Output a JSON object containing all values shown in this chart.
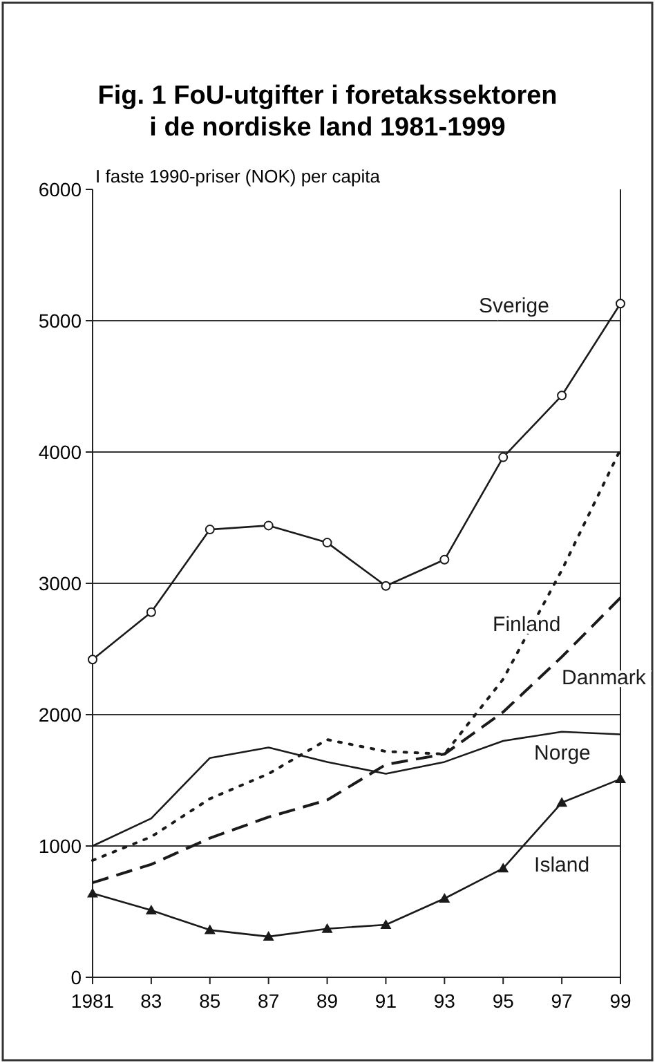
{
  "chart_data": {
    "type": "line",
    "title": "Fig. 1 FoU-utgifter i foretakssektoren i de nordiske land 1981-1999",
    "ylabel": "I faste 1990-priser (NOK) per capita",
    "x": [
      1981,
      1983,
      1985,
      1987,
      1989,
      1991,
      1993,
      1995,
      1997,
      1999
    ],
    "xlim": [
      1981,
      1999
    ],
    "xticks": [
      {
        "value": 1981,
        "label": "1981"
      },
      {
        "value": 1983,
        "label": "83"
      },
      {
        "value": 1985,
        "label": "85"
      },
      {
        "value": 1987,
        "label": "87"
      },
      {
        "value": 1989,
        "label": "89"
      },
      {
        "value": 1991,
        "label": "91"
      },
      {
        "value": 1993,
        "label": "93"
      },
      {
        "value": 1995,
        "label": "95"
      },
      {
        "value": 1997,
        "label": "97"
      },
      {
        "value": 1999,
        "label": "99"
      }
    ],
    "ylim": [
      0,
      6000
    ],
    "yticks": [
      0,
      1000,
      2000,
      3000,
      4000,
      5000,
      6000
    ],
    "grid": "y",
    "series": [
      {
        "name": "Sverige",
        "color": "#1a1a1a",
        "marker": "circle",
        "line_style": "solid",
        "values": [
          2420,
          2780,
          3410,
          3440,
          3310,
          2980,
          3180,
          3960,
          4430,
          5130
        ]
      },
      {
        "name": "Finland",
        "color": "#1a1a1a",
        "marker": "none",
        "line_style": "dotted",
        "values": [
          890,
          1070,
          1360,
          1550,
          1810,
          1720,
          1700,
          2270,
          3100,
          4020
        ]
      },
      {
        "name": "Danmark",
        "color": "#1a1a1a",
        "marker": "none",
        "line_style": "dashed",
        "values": [
          720,
          860,
          1060,
          1220,
          1350,
          1620,
          1700,
          2020,
          2440,
          2890
        ]
      },
      {
        "name": "Norge",
        "color": "#1a1a1a",
        "marker": "none",
        "line_style": "solid",
        "values": [
          1000,
          1210,
          1670,
          1750,
          1640,
          1550,
          1640,
          1800,
          1870,
          1850
        ]
      },
      {
        "name": "Island",
        "color": "#1a1a1a",
        "marker": "triangle",
        "line_style": "solid",
        "values": [
          640,
          510,
          360,
          310,
          370,
          400,
          600,
          830,
          1330,
          1510
        ]
      }
    ]
  }
}
